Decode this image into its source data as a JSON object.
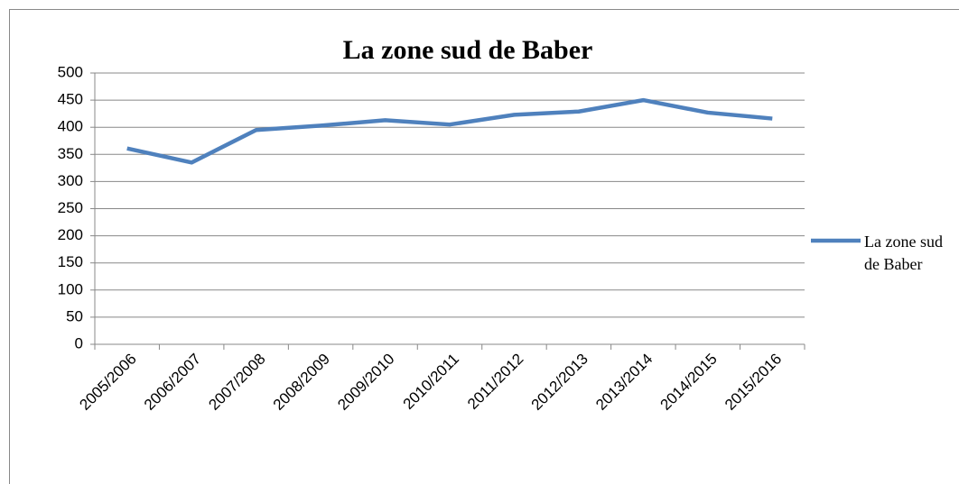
{
  "chart_data": {
    "type": "line",
    "title": "La zone sud de Baber",
    "categories": [
      "2005/2006",
      "2006/2007",
      "2007/2008",
      "2008/2009",
      "2009/2010",
      "2010/2011",
      "2011/2012",
      "2012/2013",
      "2013/2014",
      "2014/2015",
      "2015/2016"
    ],
    "series": [
      {
        "name": "La zone sud de Baber",
        "color": "#4f81bd",
        "values": [
          361,
          335,
          395,
          403,
          413,
          405,
          423,
          429,
          450,
          427,
          416
        ]
      }
    ],
    "ylim": [
      0,
      500
    ],
    "yticks": [
      0,
      50,
      100,
      150,
      200,
      250,
      300,
      350,
      400,
      450,
      500
    ],
    "grid": true,
    "legend": "right"
  }
}
